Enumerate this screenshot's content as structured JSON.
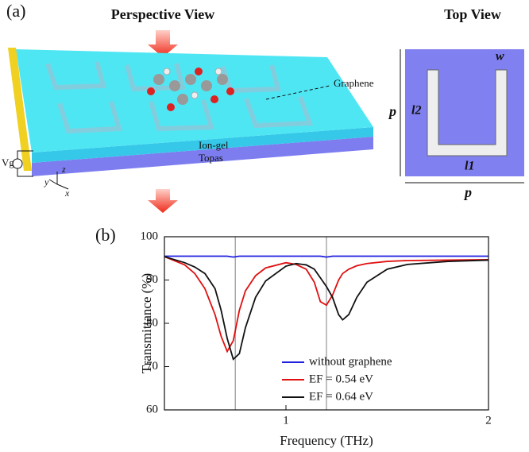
{
  "panel_a": {
    "label": "(a)",
    "perspective_title": "Perspective View",
    "top_title": "Top View",
    "graphene_label": "Graphene",
    "iongel_label": "Ion-gel",
    "topas_label": "Topas",
    "gate_label": "Vg",
    "axis_z": "z",
    "axis_y": "y",
    "axis_x": "x",
    "top_p_side": "p",
    "top_p_bottom": "p",
    "top_w": "w",
    "top_l2": "l2",
    "top_l1": "l1"
  },
  "panel_b": {
    "label": "(b)"
  },
  "chart_data": {
    "type": "line",
    "xlabel": "Frequency (THz)",
    "ylabel": "Transmittance (%)",
    "x": [
      0.4,
      0.5,
      0.55,
      0.6,
      0.65,
      0.68,
      0.71,
      0.74,
      0.77,
      0.8,
      0.85,
      0.9,
      1.0,
      1.05,
      1.1,
      1.14,
      1.17,
      1.2,
      1.23,
      1.26,
      1.28,
      1.31,
      1.35,
      1.4,
      1.5,
      1.6,
      1.8,
      2.0
    ],
    "series": [
      {
        "name": "without graphene",
        "color": "#1f1fe0",
        "values": [
          95.5,
          95.5,
          95.5,
          95.5,
          95.5,
          95.5,
          95.5,
          95.3,
          95.5,
          95.5,
          95.5,
          95.5,
          95.5,
          95.5,
          95.5,
          95.5,
          95.5,
          95.3,
          95.5,
          95.5,
          95.5,
          95.5,
          95.5,
          95.5,
          95.5,
          95.5,
          95.5,
          95.5
        ]
      },
      {
        "name": "EF = 0.54 eV",
        "color": "#e01010",
        "values": [
          95.4,
          93.5,
          91.5,
          88,
          82,
          77,
          73.5,
          76,
          83,
          87.5,
          91,
          92.8,
          94,
          93.6,
          92.5,
          89.5,
          85,
          84.2,
          86.5,
          90,
          91.5,
          92.5,
          93.3,
          93.8,
          94.3,
          94.5,
          94.6,
          94.7
        ]
      },
      {
        "name": "EF = 0.64 eV",
        "color": "#111111",
        "values": [
          95.4,
          94,
          93,
          91.5,
          88,
          83,
          76.5,
          71.7,
          73,
          79,
          86,
          89.8,
          93.2,
          93.8,
          93.5,
          92.5,
          90.5,
          88.5,
          86,
          82,
          80.8,
          82,
          86,
          89.5,
          92.5,
          93.6,
          94.3,
          94.6
        ]
      }
    ],
    "vlines": [
      0.75,
      1.2
    ],
    "vline_color": "#aaaaaa",
    "xlim": [
      0.4,
      2
    ],
    "xticks": [
      1,
      2
    ],
    "ylim": [
      60,
      100
    ],
    "yticks": [
      60,
      70,
      80,
      90,
      100
    ],
    "legend": "lower right"
  }
}
